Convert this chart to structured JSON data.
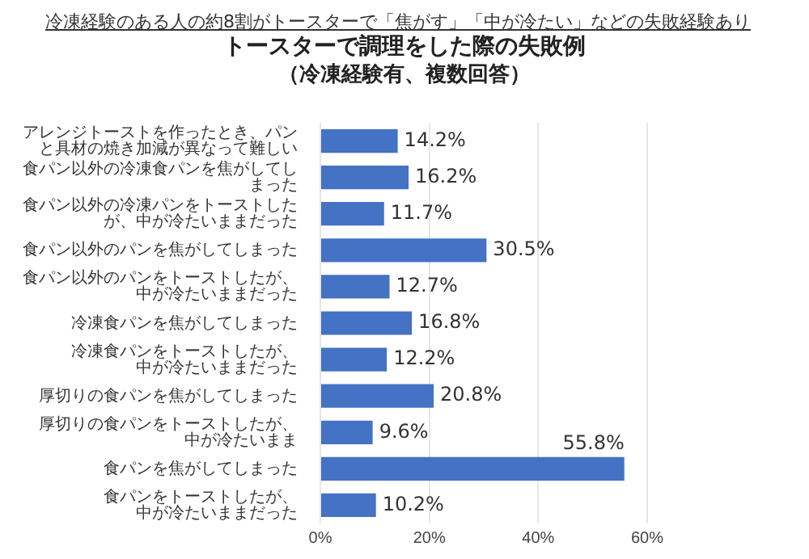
{
  "chart_data": {
    "type": "bar",
    "orientation": "horizontal",
    "annotations": [
      "冷凍経験のある人の約8割がトースターで「焦がす」「中が冷たい」などの失敗経験あり"
    ],
    "title": "トースターで調理をした際の失敗例",
    "subtitle": "（冷凍経験有、複数回答）",
    "categories": [
      "アレンジトーストを作ったとき、パンと具材の焼き加減が異なって難しい",
      "食パン以外の冷凍食パンを焦がしてしまった",
      "食パン以外の冷凍パンをトーストしたが、中が冷たいままだった",
      "食パン以外のパンを焦がしてしまった",
      "食パン以外のパンをトーストしたが、中が冷たいままだった",
      "冷凍食パンを焦がしてしまった",
      "冷凍食パンをトーストしたが、中が冷たいままだった",
      "厚切りの食パンを焦がしてしまった",
      "厚切りの食パンをトーストしたが、中が冷たいまま",
      "食パンを焦がしてしまった",
      "食パンをトーストしたが、中が冷たいままだった"
    ],
    "values": [
      14.2,
      16.2,
      11.7,
      30.5,
      12.7,
      16.8,
      12.2,
      20.8,
      9.6,
      55.8,
      10.2
    ],
    "value_labels": [
      "14.2%",
      "16.2%",
      "11.7%",
      "30.5%",
      "12.7%",
      "16.8%",
      "12.2%",
      "20.8%",
      "9.6%",
      "55.8%",
      "10.2%"
    ],
    "color": "#4472c4",
    "xlim": [
      0,
      60
    ],
    "xticks": [
      {
        "value": 0,
        "label": "0%"
      },
      {
        "value": 20,
        "label": "20%"
      },
      {
        "value": 40,
        "label": "40%"
      },
      {
        "value": 60,
        "label": "60%"
      }
    ],
    "grid": "x",
    "legend": false
  }
}
